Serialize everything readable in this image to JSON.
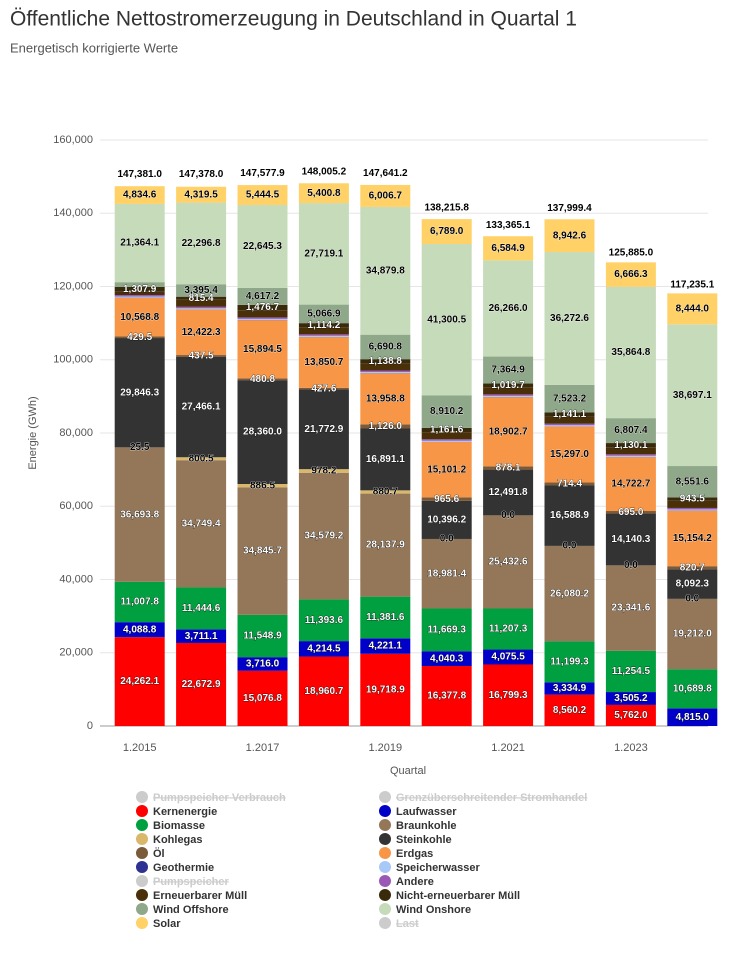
{
  "chart_data": {
    "type": "stacked_bar",
    "title": "Öffentliche Nettostromerzeugung in Deutschland in Quartal 1",
    "subtitle": "Energetisch korrigierte Werte",
    "x_label": "Quartal",
    "y_label": "Energie (GWh)",
    "categories": [
      "1.2015",
      null,
      "1.2017",
      null,
      "1.2019",
      null,
      "1.2021",
      null,
      "1.2023",
      null
    ],
    "ylim": [
      0,
      160000
    ],
    "yticks": [
      0,
      {
        "value": 20000,
        "label": "20,000"
      },
      {
        "value": 40000,
        "label": "40,000"
      },
      {
        "value": 60000,
        "label": "60,000"
      },
      {
        "value": 80000,
        "label": "80,000"
      },
      {
        "value": 100000,
        "label": "100,000"
      },
      {
        "value": 120000,
        "label": "120,000"
      },
      {
        "value": 140000,
        "label": "140,000"
      },
      {
        "value": 160000,
        "label": "160,000"
      }
    ],
    "grid": true,
    "totals": [
      147381.0,
      147378.0,
      147577.9,
      148005.2,
      147641.2,
      138215.8,
      133365.1,
      137999.4,
      125885.0,
      117235.1
    ],
    "total_labels": [
      "147,381.0",
      "147,378.0",
      "147,577.9",
      "148,005.2",
      "147,641.2",
      "138,215.8",
      "133,365.1",
      "137,999.4",
      "125,885.0",
      "117,235.1"
    ],
    "series": [
      {
        "name": "Pumpspeicher Verbrauch",
        "color": "#cccccc",
        "visible": false
      },
      {
        "name": "Grenzüberschreitender Stromhandel",
        "color": "#cccccc",
        "visible": false
      },
      {
        "name": "Kernenergie",
        "color": "#ff0000",
        "values": [
          24262.1,
          22672.9,
          15076.8,
          18960.7,
          19718.9,
          16377.8,
          16799.3,
          8560.2,
          5762.0,
          null
        ],
        "value_labels": [
          "24,262.1",
          "22,672.9",
          "15,076.8",
          "18,960.7",
          "19,718.9",
          "16,377.8",
          "16,799.3",
          "8,560.2",
          "5,762.0",
          null
        ]
      },
      {
        "name": "Laufwasser",
        "color": "#0000c8",
        "values": [
          4088.8,
          3711.1,
          3716.0,
          4214.5,
          4221.1,
          4040.3,
          4075.5,
          3334.9,
          3505.2,
          4815.0
        ],
        "value_labels": [
          "4,088.8",
          "3,711.1",
          "3,716.0",
          "4,214.5",
          "4,221.1",
          "4,040.3",
          "4,075.5",
          "3,334.9",
          "3,505.2",
          "4,815.0"
        ]
      },
      {
        "name": "Biomasse",
        "color": "#00a040",
        "values": [
          11007.8,
          11444.6,
          11548.9,
          11393.6,
          11381.6,
          11669.3,
          11207.3,
          11199.3,
          11254.5,
          10689.8
        ],
        "value_labels": [
          "11,007.8",
          "11,444.6",
          "11,548.9",
          "11,393.6",
          "11,381.6",
          "11,669.3",
          "11,207.3",
          "11,199.3",
          "11,254.5",
          "10,689.8"
        ]
      },
      {
        "name": "Braunkohle",
        "color": "#947759",
        "values": [
          36693.8,
          34749.4,
          34845.7,
          34579.2,
          28137.9,
          18981.4,
          25432.6,
          26080.2,
          23341.6,
          19212.0
        ],
        "value_labels": [
          "36,693.8",
          "34,749.4",
          "34,845.7",
          "34,579.2",
          "28,137.9",
          "18,981.4",
          "25,432.6",
          "26,080.2",
          "23,341.6",
          "19,212.0"
        ]
      },
      {
        "name": "Kohlegas",
        "color": "#d9b86c",
        "values": [
          25.5,
          800.5,
          886.5,
          978.2,
          880.7,
          0.0,
          0.0,
          0.0,
          0.0,
          0.0
        ],
        "value_labels": [
          "25.5",
          "800.5",
          "886.5",
          "978.2",
          "880.7",
          "0.0",
          "0.0",
          "0.0",
          "0.0",
          "0.0"
        ]
      },
      {
        "name": "Steinkohle",
        "color": "#333333",
        "values": [
          29846.3,
          27466.1,
          28360.0,
          21772.9,
          16891.1,
          10396.2,
          12491.8,
          16588.9,
          14140.3,
          8092.3
        ],
        "value_labels": [
          "29,846.3",
          "27,466.1",
          "28,360.0",
          "21,772.9",
          "16,891.1",
          "10,396.2",
          "12,491.8",
          "16,588.9",
          "14,140.3",
          "8,092.3"
        ]
      },
      {
        "name": "Öl",
        "color": "#7b5a3a",
        "values": [
          429.5,
          437.5,
          480.8,
          427.6,
          1126.0,
          965.6,
          878.1,
          714.4,
          695.0,
          820.7
        ],
        "value_labels": [
          "429.5",
          "437.5",
          "480.8",
          "427.6",
          "1,126.0",
          "965.6",
          "878.1",
          "714.4",
          "695.0",
          "820.7"
        ]
      },
      {
        "name": "Erdgas",
        "color": "#f79646",
        "values": [
          10568.8,
          12422.3,
          15894.5,
          13850.7,
          13958.8,
          15101.2,
          18902.7,
          15297.0,
          14722.7,
          15154.2
        ],
        "value_labels": [
          "10,568.8",
          "12,422.3",
          "15,894.5",
          "13,850.7",
          "13,958.8",
          "15,101.2",
          "18,902.7",
          "15,297.0",
          "14,722.7",
          "15,154.2"
        ]
      },
      {
        "name": "Geothermie",
        "color": "#2e3192",
        "values": [
          50,
          50,
          50,
          50,
          50,
          50,
          50,
          50,
          50,
          50
        ]
      },
      {
        "name": "Speicherwasser",
        "color": "#a8c8f8",
        "values": [
          300,
          300,
          300,
          300,
          300,
          300,
          300,
          300,
          300,
          300
        ]
      },
      {
        "name": "Pumpspeicher",
        "color": "#cccccc",
        "visible": false
      },
      {
        "name": "Andere",
        "color": "#9b59b6",
        "values": [
          400,
          400,
          400,
          400,
          400,
          400,
          400,
          400,
          400,
          400
        ]
      },
      {
        "name": "Erneuerbarer Müll",
        "color": "#4a3008",
        "values": [
          900,
          1950,
          1950,
          1950,
          1950,
          1950,
          1950,
          1950,
          1950,
          1950
        ]
      },
      {
        "name": "Nicht-erneuerbarer Müll",
        "color": "#3a2a0c",
        "values": [
          1307.9,
          815.4,
          1476.7,
          1114.2,
          1138.8,
          1161.6,
          1019.7,
          1141.1,
          1130.1,
          943.5
        ],
        "value_labels": [
          "1,307.9",
          "815.4",
          "1,476.7",
          "1,114.2",
          "1,138.8",
          "1,161.6",
          "1,019.7",
          "1,141.1",
          "1,130.1",
          "943.5"
        ]
      },
      {
        "name": "Wind Offshore",
        "color": "#90a88a",
        "values": [
          1300,
          3395.4,
          4617.2,
          5066.9,
          6690.8,
          8910.2,
          7364.9,
          7523.2,
          6807.4,
          8551.6
        ],
        "value_labels": [
          null,
          "3,395.4",
          "4,617.2",
          "5,066.9",
          "6,690.8",
          "8,910.2",
          "7,364.9",
          "7,523.2",
          "6,807.4",
          "8,551.6"
        ]
      },
      {
        "name": "Wind Onshore",
        "color": "#c6dbb9",
        "values": [
          21364.1,
          22296.8,
          22645.3,
          27719.1,
          34879.8,
          41300.5,
          26266.0,
          36272.6,
          35864.8,
          38697.1
        ],
        "value_labels": [
          "21,364.1",
          "22,296.8",
          "22,645.3",
          "27,719.1",
          "34,879.8",
          "41,300.5",
          "26,266.0",
          "36,272.6",
          "35,864.8",
          "38,697.1"
        ]
      },
      {
        "name": "Solar",
        "color": "#ffd166",
        "values": [
          4834.6,
          4319.5,
          5444.5,
          5400.8,
          6006.7,
          6789.0,
          6584.9,
          8942.6,
          6666.3,
          8444.0
        ],
        "value_labels": [
          "4,834.6",
          "4,319.5",
          "5,444.5",
          "5,400.8",
          "6,006.7",
          "6,789.0",
          "6,584.9",
          "8,942.6",
          "6,666.3",
          "8,444.0"
        ]
      },
      {
        "name": "Last",
        "color": "#cccccc",
        "visible": false
      }
    ]
  }
}
